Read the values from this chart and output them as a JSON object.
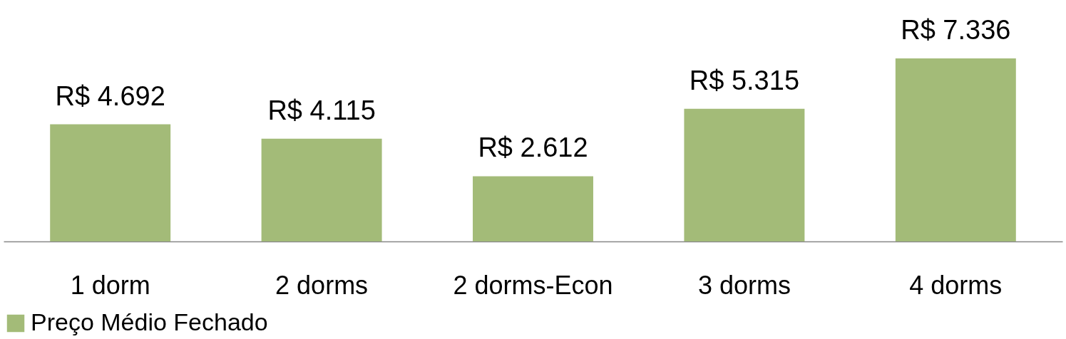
{
  "chart_data": {
    "type": "bar",
    "categories": [
      "1 dorm",
      "2 dorms",
      "2 dorms-Econ",
      "3 dorms",
      "4 dorms"
    ],
    "series": [
      {
        "name": "Preço Médio Fechado",
        "color": "#a3bb78",
        "values": [
          4692,
          4115,
          2612,
          5315,
          7336
        ],
        "value_labels": [
          "R$ 4.692",
          "R$ 4.115",
          "R$ 2.612",
          "R$ 5.315",
          "R$ 7.336"
        ]
      }
    ],
    "legend": "bottom",
    "grid": false
  }
}
